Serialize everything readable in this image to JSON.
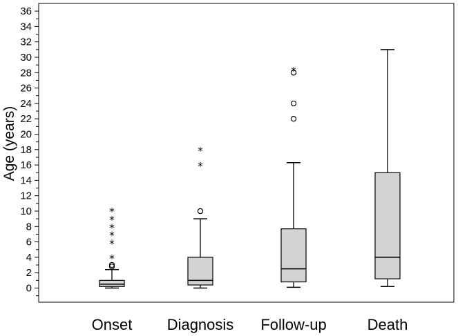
{
  "chart_data": {
    "type": "boxplot",
    "title": "",
    "xlabel": "",
    "ylabel": "Age (years)",
    "ylim": [
      -1.5,
      37
    ],
    "ytick_step": 1,
    "ytick_label_step": 2,
    "yticks_labeled": [
      0,
      2,
      4,
      6,
      8,
      10,
      12,
      14,
      16,
      18,
      20,
      22,
      24,
      26,
      28,
      30,
      32,
      34,
      36
    ],
    "grid": false,
    "box_color": "#d3d3d3",
    "line_color": "#000000",
    "categories": [
      "Onset",
      "Diagnosis",
      "Follow-up",
      "Death"
    ],
    "boxes": [
      {
        "category": "Onset",
        "whisker_low": 0,
        "q1": 0.2,
        "median": 0.5,
        "q3": 1.0,
        "whisker_high": 2.4,
        "outliers_circle": [
          2.8,
          3.0
        ],
        "outliers_star": [
          4.0,
          5.9,
          7.0,
          8.0,
          9.0,
          10.1
        ]
      },
      {
        "category": "Diagnosis",
        "whisker_low": 0,
        "q1": 0.4,
        "median": 1.0,
        "q3": 4.0,
        "whisker_high": 9.0,
        "outliers_circle": [
          10.0
        ],
        "outliers_star": [
          16.0,
          18.0
        ]
      },
      {
        "category": "Follow-up",
        "whisker_low": 0.1,
        "q1": 0.8,
        "median": 2.5,
        "q3": 7.7,
        "whisker_high": 16.3,
        "outliers_circle": [
          22.0,
          24.0,
          28.0
        ],
        "outliers_star": [
          28.4
        ]
      },
      {
        "category": "Death",
        "whisker_low": 0.2,
        "q1": 1.2,
        "median": 4.0,
        "q3": 15.0,
        "whisker_high": 31.0,
        "outliers_circle": [],
        "outliers_star": []
      }
    ]
  }
}
